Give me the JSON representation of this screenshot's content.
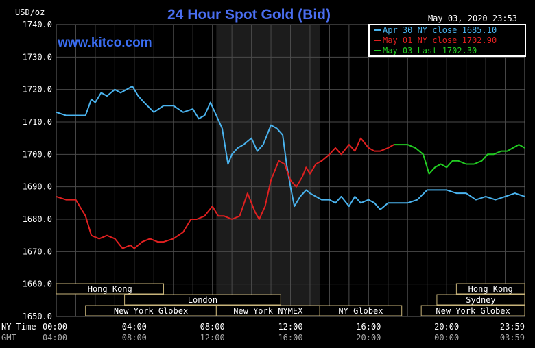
{
  "chart_data": {
    "type": "line",
    "title": "24 Hour Spot Gold (Bid)",
    "ylabel": "USD/oz",
    "timestamp": "May 03, 2020 23:53",
    "watermark": "www.kitco.com",
    "ylim": [
      1650,
      1740
    ],
    "yticks": [
      "1740.0",
      "1730.0",
      "1720.0",
      "1710.0",
      "1700.0",
      "1690.0",
      "1680.0",
      "1670.0",
      "1660.0",
      "1650.0"
    ],
    "ytick_values": [
      1740,
      1730,
      1720,
      1710,
      1700,
      1690,
      1680,
      1670,
      1660,
      1650
    ],
    "xlim": [
      0,
      24
    ],
    "grid": true,
    "legend_position": "top-right",
    "x_axis_rows": [
      {
        "label": "NY Time",
        "ticks": [
          "00:00",
          "04:00",
          "08:00",
          "12:00",
          "16:00",
          "20:00",
          "23:59"
        ],
        "values": [
          0,
          4,
          8,
          12,
          16,
          20,
          24
        ]
      },
      {
        "label": "GMT",
        "ticks": [
          "04:00",
          "08:00",
          "12:00",
          "16:00",
          "20:00",
          "00:00",
          "03:59"
        ],
        "values": [
          0,
          4,
          8,
          12,
          16,
          20,
          24
        ]
      }
    ],
    "shaded_region": [
      8.2,
      13.5
    ],
    "sessions": [
      {
        "label": "Hong Kong",
        "row": 0,
        "start": 0,
        "end": 5.5
      },
      {
        "label": "Hong Kong",
        "row": 0,
        "start": 20.5,
        "end": 24
      },
      {
        "label": "Sydney",
        "row": 1,
        "start": 19.5,
        "end": 24
      },
      {
        "label": "London",
        "row": 1,
        "start": 3.5,
        "end": 11.5
      },
      {
        "label": "New York Globex",
        "row": 2,
        "start": 1.5,
        "end": 8.2
      },
      {
        "label": "New York NYMEX",
        "row": 2,
        "start": 8.2,
        "end": 13.5
      },
      {
        "label": "NY Globex",
        "row": 2,
        "start": 13.5,
        "end": 17.7
      },
      {
        "label": "New York Globex",
        "row": 2,
        "start": 18.7,
        "end": 24
      }
    ],
    "series": [
      {
        "name": "Apr 30 NY close 1685.10",
        "color": "#4ab3ee",
        "x": [
          0,
          0.5,
          1.0,
          1.5,
          1.8,
          2.0,
          2.3,
          2.6,
          3.0,
          3.3,
          3.6,
          3.9,
          4.2,
          4.5,
          5.0,
          5.5,
          6.0,
          6.5,
          7.0,
          7.3,
          7.6,
          7.9,
          8.2,
          8.5,
          8.8,
          9.0,
          9.3,
          9.6,
          10.0,
          10.3,
          10.6,
          11.0,
          11.3,
          11.6,
          11.8,
          12.0,
          12.2,
          12.5,
          12.8,
          13.0,
          13.3,
          13.6,
          14.0,
          14.3,
          14.6,
          15.0,
          15.3,
          15.6,
          16.0,
          16.3,
          16.6,
          17.0,
          17.5,
          18.0,
          18.5,
          19.0,
          19.5,
          20.0,
          20.5,
          21.0,
          21.5,
          22.0,
          22.5,
          23.0,
          23.5,
          24.0
        ],
        "values": [
          1713,
          1712,
          1712,
          1712,
          1717,
          1716,
          1719,
          1718,
          1720,
          1719,
          1720,
          1721,
          1718,
          1716,
          1713,
          1715,
          1715,
          1713,
          1714,
          1711,
          1712,
          1716,
          1712,
          1708,
          1697,
          1700,
          1702,
          1703,
          1705,
          1701,
          1703,
          1709,
          1708,
          1706,
          1697,
          1690,
          1684,
          1687,
          1689,
          1688,
          1687,
          1686,
          1686,
          1685,
          1687,
          1684,
          1687,
          1685,
          1686,
          1685,
          1683,
          1685,
          1685,
          1685,
          1686,
          1689,
          1689,
          1689,
          1688,
          1688,
          1686,
          1687,
          1686,
          1687,
          1688,
          1687
        ]
      },
      {
        "name": "May 01 NY close 1702.90",
        "color": "#e02020",
        "x": [
          0,
          0.5,
          1.0,
          1.5,
          1.8,
          2.2,
          2.6,
          3.0,
          3.4,
          3.8,
          4.0,
          4.4,
          4.8,
          5.2,
          5.5,
          6.0,
          6.5,
          6.9,
          7.2,
          7.6,
          8.0,
          8.3,
          8.6,
          9.0,
          9.4,
          9.8,
          10.2,
          10.4,
          10.7,
          11.0,
          11.4,
          11.7,
          12.0,
          12.3,
          12.6,
          12.8,
          13.0,
          13.3,
          13.6,
          14.0,
          14.3,
          14.6,
          15.0,
          15.3,
          15.6,
          16.0,
          16.3,
          16.6,
          17.0,
          17.3
        ],
        "values": [
          1687,
          1686,
          1686,
          1681,
          1675,
          1674,
          1675,
          1674,
          1671,
          1672,
          1671,
          1673,
          1674,
          1673,
          1673,
          1674,
          1676,
          1680,
          1680,
          1681,
          1684,
          1681,
          1681,
          1680,
          1681,
          1688,
          1682,
          1680,
          1684,
          1692,
          1698,
          1697,
          1692,
          1690,
          1693,
          1696,
          1694,
          1697,
          1698,
          1700,
          1702,
          1700,
          1703,
          1701,
          1705,
          1702,
          1701,
          1701,
          1702,
          1703
        ]
      },
      {
        "name": "May 03 Last 1702.30",
        "color": "#22cc22",
        "x": [
          17.3,
          17.6,
          18.0,
          18.4,
          18.8,
          19.1,
          19.4,
          19.7,
          20.0,
          20.3,
          20.6,
          21.0,
          21.4,
          21.8,
          22.1,
          22.4,
          22.8,
          23.1,
          23.4,
          23.7,
          24.0
        ],
        "values": [
          1703,
          1703,
          1703,
          1702,
          1700,
          1694,
          1696,
          1697,
          1696,
          1698,
          1698,
          1697,
          1697,
          1698,
          1700,
          1700,
          1701,
          1701,
          1702,
          1703,
          1702
        ]
      }
    ]
  }
}
